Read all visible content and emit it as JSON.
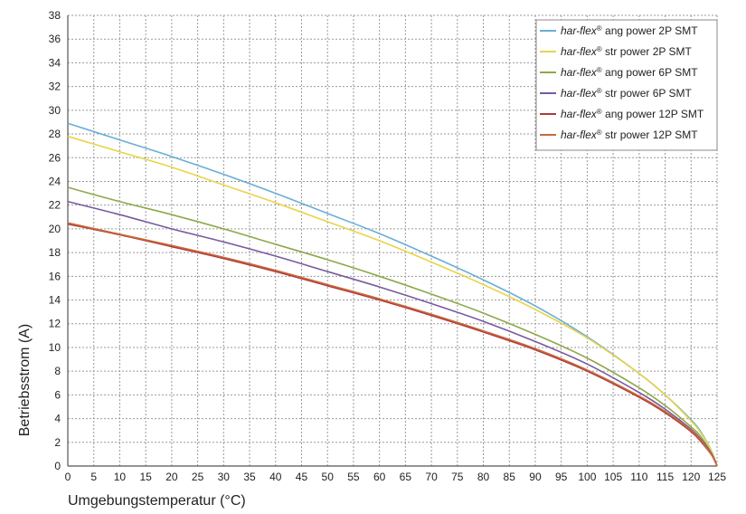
{
  "chart_data": {
    "type": "line",
    "xlabel": "Umgebungstemperatur (°C)",
    "ylabel": "Betriebsstrom (A)",
    "xlim": [
      0,
      125
    ],
    "ylim": [
      0,
      38
    ],
    "x_ticks": [
      0,
      5,
      10,
      15,
      20,
      25,
      30,
      35,
      40,
      45,
      50,
      55,
      60,
      65,
      70,
      75,
      80,
      85,
      90,
      95,
      100,
      105,
      110,
      115,
      120,
      125
    ],
    "y_ticks": [
      0,
      2,
      4,
      6,
      8,
      10,
      12,
      14,
      16,
      18,
      20,
      22,
      24,
      26,
      28,
      30,
      32,
      34,
      36,
      38
    ],
    "grid": true,
    "legend_position": "top-right",
    "x": [
      0,
      10,
      20,
      30,
      40,
      50,
      60,
      70,
      80,
      90,
      100,
      110,
      115,
      120,
      122,
      124,
      125
    ],
    "series": [
      {
        "name_italic": "har-flex",
        "name_mark": "®",
        "name_rest": " ang power 2P SMT",
        "color": "#6aaed6",
        "values": [
          28.9,
          27.5,
          26.1,
          24.6,
          23.0,
          21.3,
          19.6,
          17.7,
          15.7,
          13.5,
          10.9,
          7.8,
          6.0,
          3.9,
          2.8,
          1.2,
          0.0
        ]
      },
      {
        "name_italic": "har-flex",
        "name_mark": "®",
        "name_rest": " str power 2P SMT",
        "color": "#e8d44a",
        "values": [
          27.8,
          26.5,
          25.2,
          23.7,
          22.2,
          20.6,
          19.0,
          17.2,
          15.3,
          13.2,
          10.8,
          7.8,
          6.0,
          3.8,
          2.7,
          1.2,
          0.0
        ]
      },
      {
        "name_italic": "har-flex",
        "name_mark": "®",
        "name_rest": " ang power 6P SMT",
        "color": "#8da84a",
        "values": [
          23.5,
          22.3,
          21.2,
          20.0,
          18.7,
          17.4,
          16.0,
          14.5,
          12.9,
          11.1,
          9.1,
          6.6,
          5.1,
          3.3,
          2.4,
          1.0,
          0.0
        ]
      },
      {
        "name_italic": "har-flex",
        "name_mark": "®",
        "name_rest": " str power 6P SMT",
        "color": "#7a5a9e",
        "values": [
          22.3,
          21.2,
          20.0,
          18.9,
          17.7,
          16.4,
          15.1,
          13.7,
          12.2,
          10.5,
          8.6,
          6.2,
          4.8,
          3.1,
          2.2,
          1.0,
          0.0
        ]
      },
      {
        "name_italic": "har-flex",
        "name_mark": "®",
        "name_rest": " ang power 12P SMT",
        "color": "#b03a3a",
        "values": [
          20.4,
          19.5,
          18.5,
          17.5,
          16.4,
          15.2,
          14.0,
          12.7,
          11.3,
          9.8,
          8.0,
          5.8,
          4.5,
          2.9,
          2.0,
          0.9,
          0.0
        ]
      },
      {
        "name_italic": "har-flex",
        "name_mark": "®",
        "name_rest": " str power 12P SMT",
        "color": "#c8693a",
        "values": [
          20.5,
          19.55,
          18.6,
          17.6,
          16.5,
          15.3,
          14.1,
          12.8,
          11.4,
          9.9,
          8.1,
          5.9,
          4.6,
          3.0,
          2.1,
          0.9,
          0.0
        ]
      }
    ]
  }
}
